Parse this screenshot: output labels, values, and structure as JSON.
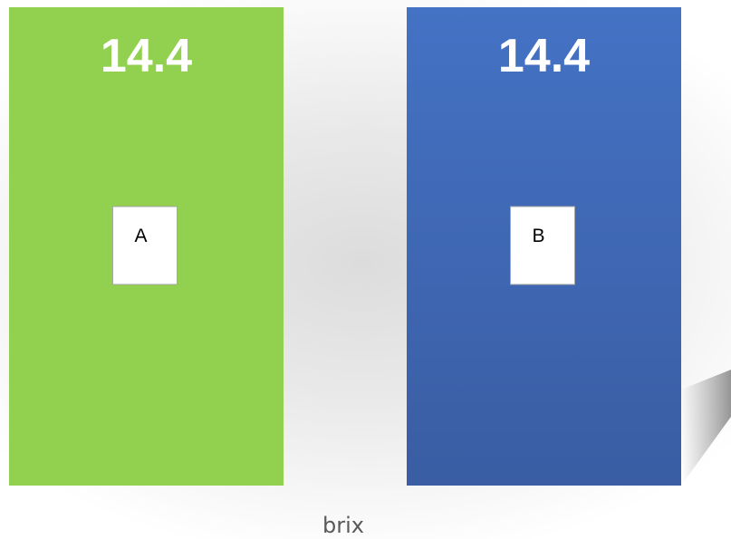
{
  "chart_data": {
    "type": "bar",
    "categories": [
      "A",
      "B"
    ],
    "values": [
      14.4,
      14.4
    ],
    "data_labels": [
      "14.4",
      "14.4"
    ],
    "xlabel": "brix",
    "ylabel": "",
    "title": "",
    "grid": false,
    "legend": "none",
    "colors": {
      "A": "#92d050",
      "B": "#4472c4",
      "B_dark": "#3a5da3",
      "category_box": "#ffffff",
      "category_box_border": "#a6a6a6",
      "value_text": "#ffffff",
      "xlabel_text": "#595959"
    }
  }
}
